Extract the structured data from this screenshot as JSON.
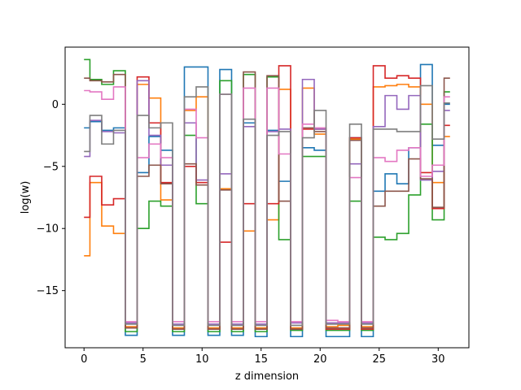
{
  "chart_data": {
    "type": "line",
    "drawstyle": "steps-mid",
    "xlabel": "z dimension",
    "ylabel": "log(w)",
    "xlim": [
      -1.6,
      32.6
    ],
    "ylim": [
      -19.6,
      4.6
    ],
    "xticks": [
      0,
      5,
      10,
      15,
      20,
      25,
      30
    ],
    "yticks": [
      0,
      -5,
      -10,
      -15
    ],
    "ytick_labels": [
      "0",
      "−5",
      "−10",
      "−15"
    ],
    "grid": false,
    "legend": "none",
    "x": [
      0,
      1,
      2,
      3,
      4,
      5,
      6,
      7,
      8,
      9,
      10,
      11,
      12,
      13,
      14,
      15,
      16,
      17,
      18,
      19,
      20,
      21,
      22,
      23,
      24,
      25,
      26,
      27,
      28,
      29,
      30,
      31
    ],
    "series": [
      {
        "color": "#1f77b4",
        "values": [
          -1.9,
          -1.4,
          -2.1,
          -1.9,
          -18.6,
          -5.5,
          -2.6,
          -3.7,
          -18.6,
          3.0,
          3.0,
          -18.6,
          2.8,
          -18.6,
          -1.5,
          -18.7,
          -2.1,
          -6.2,
          -18.7,
          -3.5,
          -3.7,
          -18.7,
          -18.7,
          -2.7,
          -18.7,
          -7.0,
          -5.6,
          -6.4,
          -3.5,
          3.2,
          -3.3,
          0.0
        ]
      },
      {
        "color": "#ff7f0e",
        "values": [
          -12.2,
          -6.3,
          -9.8,
          -10.4,
          -17.9,
          1.6,
          0.5,
          -7.7,
          -18.0,
          -0.5,
          0.6,
          -18.0,
          -6.8,
          -18.0,
          -10.2,
          -18.0,
          -9.3,
          1.2,
          -18.0,
          1.3,
          -2.4,
          -17.9,
          -17.8,
          -2.8,
          -17.9,
          1.4,
          1.5,
          1.6,
          1.4,
          0.0,
          -6.3,
          -2.6
        ]
      },
      {
        "color": "#2ca02c",
        "values": [
          3.6,
          2.0,
          1.6,
          2.7,
          -18.3,
          -10.0,
          -7.8,
          -8.2,
          -18.3,
          -2.5,
          -8.0,
          -18.3,
          1.9,
          -18.3,
          2.4,
          -18.3,
          2.2,
          -10.9,
          -18.2,
          -4.2,
          -4.2,
          -18.2,
          -18.2,
          -7.8,
          -18.2,
          -10.7,
          -10.9,
          -10.4,
          -7.3,
          -1.6,
          -9.3,
          1.0
        ]
      },
      {
        "color": "#d62728",
        "values": [
          -9.1,
          -5.8,
          -8.1,
          -7.6,
          -18.0,
          2.2,
          -1.5,
          -6.3,
          -18.1,
          -5.0,
          -6.3,
          -18.1,
          -11.1,
          -18.1,
          -8.0,
          -18.1,
          -8.0,
          3.1,
          -18.1,
          -2.0,
          -2.0,
          -18.1,
          -18.1,
          -2.7,
          -18.1,
          3.1,
          2.1,
          2.3,
          2.1,
          -5.5,
          -8.4,
          -1.7
        ]
      },
      {
        "color": "#9467bd",
        "values": [
          -4.2,
          -1.3,
          -2.2,
          -2.3,
          -17.6,
          1.9,
          -2.5,
          -4.9,
          -17.7,
          -1.5,
          -6.1,
          -17.7,
          -5.6,
          -17.7,
          -1.8,
          -17.7,
          -2.2,
          -2.0,
          -17.6,
          2.0,
          -2.0,
          -17.6,
          -17.6,
          -4.8,
          -17.6,
          -1.8,
          0.7,
          -0.4,
          0.7,
          -6.1,
          -5.4,
          -0.5
        ]
      },
      {
        "color": "#8c564b",
        "values": [
          2.1,
          1.9,
          1.8,
          2.4,
          -18.0,
          -5.8,
          -4.9,
          -6.4,
          -18.1,
          -4.8,
          -6.5,
          -18.1,
          -6.9,
          -18.1,
          2.6,
          -18.1,
          2.3,
          -7.8,
          -18.1,
          -1.9,
          -2.2,
          -18.0,
          -18.0,
          -2.9,
          -18.0,
          -8.2,
          -7.0,
          -7.0,
          -4.4,
          -6.0,
          -8.3,
          2.1
        ]
      },
      {
        "color": "#e377c2",
        "values": [
          1.1,
          1.0,
          0.4,
          1.4,
          -17.5,
          -4.3,
          -3.2,
          -4.3,
          -17.5,
          -0.4,
          -2.7,
          -17.5,
          0.8,
          -17.5,
          1.3,
          -17.5,
          1.3,
          -4.0,
          -17.5,
          -1.6,
          -1.9,
          -17.4,
          -17.5,
          -5.9,
          -17.5,
          -4.3,
          -4.6,
          -3.7,
          -3.5,
          -5.8,
          -4.9,
          0.6
        ]
      },
      {
        "color": "#7f7f7f",
        "values": [
          -3.8,
          -0.9,
          -3.2,
          -2.1,
          -17.7,
          -0.9,
          -1.9,
          -1.5,
          -17.8,
          0.6,
          1.4,
          -17.8,
          0.8,
          -17.8,
          -1.2,
          -17.8,
          -2.5,
          -2.2,
          -17.8,
          -2.7,
          -0.5,
          -17.7,
          -17.7,
          -1.6,
          -17.7,
          -2.0,
          -2.0,
          -2.2,
          -2.2,
          1.5,
          -2.8,
          0.1
        ]
      }
    ]
  }
}
